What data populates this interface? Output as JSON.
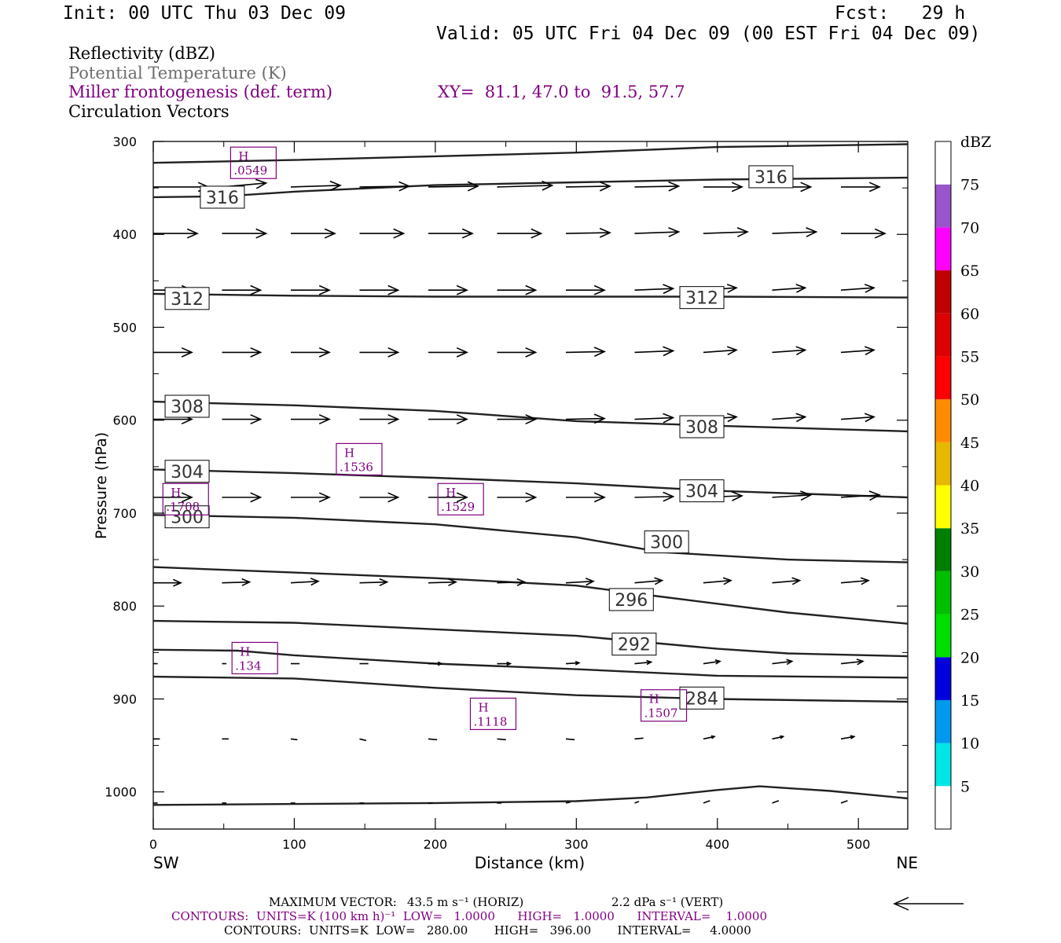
{
  "header": {
    "init": "Init: 00 UTC Thu 03 Dec 09",
    "fcst": "Fcst:   29 h",
    "valid": "Valid: 05 UTC Fri 04 Dec 09 (00 EST Fri 04 Dec 09)",
    "field1": "Reflectivity (dBZ)",
    "field2": "Potential Temperature (K)",
    "field3": "Miller frontogenesis (def. term)",
    "xy": "XY=  81.1, 47.0 to  91.5, 57.7",
    "field4": "Circulation Vectors"
  },
  "colors": {
    "purple": "#800080",
    "gray": "#6e6e6e",
    "contour": "#222222"
  },
  "footer": {
    "maxvec_label": "MAXIMUM VECTOR:",
    "maxvec_h": "43.5 m s⁻¹ (HORIZ)",
    "maxvec_v": "2.2 dPa s⁻¹ (VERT)",
    "contours_purple": "CONTOURS:  UNITS=K (100 km h)⁻¹  LOW=   1.0000      HIGH=   1.0000      INTERVAL=    1.0000",
    "contours_black": "CONTOURS:  UNITS=K  LOW=   280.00       HIGH=   396.00       INTERVAL=     4.0000"
  },
  "chart_data": {
    "type": "line",
    "xlabel": "Distance (km)",
    "ylabel": "Pressure (hPa)",
    "x_ticks": [
      "0",
      "100",
      "200",
      "300",
      "400",
      "500"
    ],
    "y_ticks": [
      "300",
      "400",
      "500",
      "600",
      "700",
      "800",
      "900",
      "1000"
    ],
    "xlim": [
      0,
      535
    ],
    "ylim": [
      300,
      1040
    ],
    "x_end_labels": {
      "left": "SW",
      "right": "NE"
    },
    "colorbar": {
      "title": "dBZ",
      "labels": [
        "5",
        "10",
        "15",
        "20",
        "25",
        "30",
        "35",
        "40",
        "45",
        "50",
        "55",
        "60",
        "65",
        "70",
        "75"
      ],
      "colors": [
        "#ffffff",
        "#00e5e5",
        "#0099ee",
        "#0000dd",
        "#00dd00",
        "#00c000",
        "#008000",
        "#ffff00",
        "#e6b800",
        "#ff8c00",
        "#ff0000",
        "#dd0000",
        "#c00000",
        "#ff00ff",
        "#9955cc",
        "#ffffff"
      ]
    },
    "theta_contours": [
      {
        "label": "",
        "points": [
          [
            0,
            323
          ],
          [
            100,
            320
          ],
          [
            200,
            316
          ],
          [
            300,
            312
          ],
          [
            400,
            306
          ],
          [
            535,
            303
          ]
        ]
      },
      {
        "label": "316",
        "points": [
          [
            0,
            360
          ],
          [
            50,
            359
          ],
          [
            100,
            354
          ],
          [
            200,
            347
          ],
          [
            300,
            344
          ],
          [
            400,
            341
          ],
          [
            535,
            339
          ]
        ]
      },
      {
        "label": "312",
        "points": [
          [
            0,
            464
          ],
          [
            100,
            466
          ],
          [
            200,
            467
          ],
          [
            300,
            467
          ],
          [
            400,
            467
          ],
          [
            535,
            468
          ]
        ]
      },
      {
        "label": "308",
        "points": [
          [
            0,
            580
          ],
          [
            100,
            584
          ],
          [
            200,
            590
          ],
          [
            300,
            601
          ],
          [
            400,
            606
          ],
          [
            535,
            612
          ]
        ]
      },
      {
        "label": "304",
        "points": [
          [
            0,
            653
          ],
          [
            100,
            657
          ],
          [
            200,
            662
          ],
          [
            300,
            668
          ],
          [
            400,
            676
          ],
          [
            535,
            683
          ]
        ]
      },
      {
        "label": "300",
        "points": [
          [
            0,
            702
          ],
          [
            100,
            705
          ],
          [
            200,
            712
          ],
          [
            300,
            726
          ],
          [
            360,
            742
          ],
          [
            450,
            750
          ],
          [
            535,
            753
          ]
        ]
      },
      {
        "label": "296",
        "points": [
          [
            0,
            758
          ],
          [
            100,
            764
          ],
          [
            200,
            770
          ],
          [
            300,
            778
          ],
          [
            350,
            788
          ],
          [
            450,
            807
          ],
          [
            535,
            819
          ]
        ]
      },
      {
        "label": "292",
        "points": [
          [
            0,
            816
          ],
          [
            100,
            818
          ],
          [
            200,
            825
          ],
          [
            300,
            832
          ],
          [
            400,
            846
          ],
          [
            450,
            851
          ],
          [
            535,
            854
          ]
        ]
      },
      {
        "label": "",
        "points": [
          [
            0,
            847
          ],
          [
            60,
            848
          ],
          [
            100,
            853
          ],
          [
            200,
            862
          ],
          [
            300,
            868
          ],
          [
            400,
            875
          ],
          [
            535,
            877
          ]
        ]
      },
      {
        "label": "284",
        "points": [
          [
            0,
            876
          ],
          [
            100,
            878
          ],
          [
            200,
            888
          ],
          [
            300,
            896
          ],
          [
            400,
            900
          ],
          [
            535,
            903
          ]
        ]
      },
      {
        "label": "",
        "points": [
          [
            0,
            1014
          ],
          [
            100,
            1013
          ],
          [
            200,
            1012
          ],
          [
            300,
            1010
          ],
          [
            350,
            1006
          ],
          [
            400,
            998
          ],
          [
            430,
            994
          ],
          [
            480,
            999
          ],
          [
            535,
            1007
          ]
        ]
      }
    ],
    "theta_labels": [
      {
        "text": "316",
        "x": 49,
        "p": 360
      },
      {
        "text": "316",
        "x": 438,
        "p": 338
      },
      {
        "text": "312",
        "x": 24,
        "p": 469
      },
      {
        "text": "312",
        "x": 389,
        "p": 468
      },
      {
        "text": "308",
        "x": 24,
        "p": 585
      },
      {
        "text": "308",
        "x": 389,
        "p": 607
      },
      {
        "text": "304",
        "x": 24,
        "p": 655
      },
      {
        "text": "304",
        "x": 389,
        "p": 676
      },
      {
        "text": "300",
        "x": 24,
        "p": 704
      },
      {
        "text": "300",
        "x": 364,
        "p": 731
      },
      {
        "text": "296",
        "x": 339,
        "p": 793
      },
      {
        "text": "292",
        "x": 341,
        "p": 841
      },
      {
        "text": "284",
        "x": 389,
        "p": 899
      }
    ],
    "frontogenesis_maxima": [
      {
        "label": "H",
        "value": ".0549",
        "x": 71,
        "p": 323
      },
      {
        "label": "H",
        "value": ".1536",
        "x": 146,
        "p": 642
      },
      {
        "label": "H",
        "value": ".1708",
        "x": 23,
        "p": 685
      },
      {
        "label": "H",
        "value": ".1529",
        "x": 218,
        "p": 685
      },
      {
        "label": "H",
        "value": ".134",
        "x": 72,
        "p": 856
      },
      {
        "label": "H",
        "value": ".1118",
        "x": 241,
        "p": 916
      },
      {
        "label": "H",
        "value": ".1507",
        "x": 362,
        "p": 907
      }
    ],
    "vector_rows": [
      {
        "p": 349,
        "lengths": [
          50,
          40,
          45,
          45,
          45,
          50,
          40,
          40,
          35,
          35,
          35
        ],
        "dy": [
          0,
          -5,
          -2,
          -1,
          -1,
          -2,
          -1,
          -1,
          0,
          0,
          0
        ]
      },
      {
        "p": 399,
        "lengths": [
          40,
          40,
          40,
          40,
          40,
          40,
          40,
          40,
          40,
          40,
          40
        ],
        "dy": [
          0,
          0,
          0,
          0,
          0,
          0,
          -1,
          -2,
          -2,
          -2,
          0
        ]
      },
      {
        "p": 460,
        "lengths": [
          35,
          35,
          35,
          35,
          35,
          35,
          35,
          35,
          30,
          30,
          30
        ],
        "dy": [
          0,
          0,
          0,
          0,
          0,
          0,
          0,
          -2,
          -3,
          -3,
          -3
        ]
      },
      {
        "p": 527,
        "lengths": [
          35,
          35,
          35,
          35,
          35,
          35,
          35,
          35,
          30,
          30,
          30
        ],
        "dy": [
          0,
          0,
          0,
          0,
          0,
          0,
          -1,
          -2,
          -3,
          -3,
          -3
        ]
      },
      {
        "p": 599,
        "lengths": [
          35,
          35,
          35,
          35,
          35,
          35,
          35,
          35,
          30,
          30,
          30
        ],
        "dy": [
          0,
          0,
          0,
          0,
          0,
          0,
          -1,
          -2,
          -3,
          -3,
          -3
        ]
      },
      {
        "p": 683,
        "lengths": [
          35,
          35,
          35,
          35,
          35,
          35,
          35,
          35,
          35,
          35,
          35
        ],
        "dy": [
          0,
          0,
          0,
          0,
          0,
          0,
          0,
          -1,
          -2,
          -3,
          -3
        ]
      },
      {
        "p": 775,
        "lengths": [
          25,
          25,
          25,
          25,
          25,
          25,
          25,
          25,
          25,
          25,
          25
        ],
        "dy": [
          0,
          -1,
          -2,
          -1,
          -1,
          -1,
          -2,
          -3,
          -3,
          -3,
          -3
        ]
      },
      {
        "p": 862,
        "lengths": [
          4,
          4,
          8,
          8,
          12,
          12,
          12,
          15,
          15,
          18,
          20
        ],
        "dy": [
          0,
          0,
          0,
          0,
          0,
          0,
          -1,
          -2,
          -3,
          -3,
          -3
        ]
      },
      {
        "p": 943,
        "lengths": [
          6,
          6,
          6,
          6,
          8,
          8,
          8,
          8,
          10,
          10,
          12
        ],
        "dy": [
          0,
          0,
          1,
          2,
          1,
          1,
          1,
          -1,
          -3,
          -3,
          -3
        ]
      },
      {
        "p": 1012,
        "lengths": [
          4,
          4,
          4,
          4,
          4,
          4,
          4,
          4,
          6,
          6,
          6
        ],
        "dy": [
          0,
          0,
          0,
          0,
          0,
          0,
          -1,
          -2,
          -3,
          -3,
          -3
        ]
      }
    ]
  }
}
